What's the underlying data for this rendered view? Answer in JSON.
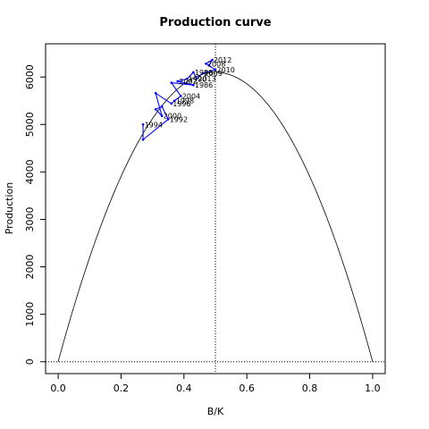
{
  "chart_data": {
    "type": "line",
    "title": "Production curve",
    "xlabel": "B/K",
    "ylabel": "Production",
    "xlim": [
      -0.04,
      1.04
    ],
    "ylim": [
      -250,
      6700
    ],
    "x_ticks": [
      "0.0",
      "0.2",
      "0.4",
      "0.6",
      "0.8",
      "1.0"
    ],
    "y_ticks": [
      "0",
      "1000",
      "2000",
      "3000",
      "4000",
      "5000",
      "6000"
    ],
    "curve": {
      "msy": 6100,
      "bmsy_over_k": 0.5,
      "color": "#000000"
    },
    "reference_lines": {
      "vertical_x": 0.5,
      "horizontal_y": 0
    },
    "series": [
      {
        "color": "#0000ff",
        "points": [
          {
            "x": 0.48,
            "y": 6250,
            "label": ""
          },
          {
            "x": 0.49,
            "y": 6360,
            "label": "2012"
          },
          {
            "x": 0.47,
            "y": 6280,
            "label": "2008"
          },
          {
            "x": 0.5,
            "y": 6150,
            "label": "2010"
          },
          {
            "x": 0.46,
            "y": 6080,
            "label": "2009"
          },
          {
            "x": 0.44,
            "y": 5970,
            "label": "2013"
          },
          {
            "x": 0.43,
            "y": 6100,
            "label": "1988"
          },
          {
            "x": 0.41,
            "y": 5960,
            "label": "1990"
          },
          {
            "x": 0.38,
            "y": 5910,
            "label": "2002"
          },
          {
            "x": 0.43,
            "y": 5830,
            "label": "1986"
          },
          {
            "x": 0.36,
            "y": 5880,
            "label": ""
          },
          {
            "x": 0.39,
            "y": 5600,
            "label": "2004"
          },
          {
            "x": 0.37,
            "y": 5500,
            "label": "1998"
          },
          {
            "x": 0.36,
            "y": 5440,
            "label": "1996"
          },
          {
            "x": 0.31,
            "y": 5660,
            "label": ""
          },
          {
            "x": 0.33,
            "y": 5180,
            "label": "2000"
          },
          {
            "x": 0.31,
            "y": 5320,
            "label": ""
          },
          {
            "x": 0.33,
            "y": 5380,
            "label": ""
          },
          {
            "x": 0.35,
            "y": 5110,
            "label": "1992"
          },
          {
            "x": 0.27,
            "y": 4680,
            "label": ""
          },
          {
            "x": 0.27,
            "y": 5000,
            "label": "1994"
          }
        ]
      }
    ]
  }
}
